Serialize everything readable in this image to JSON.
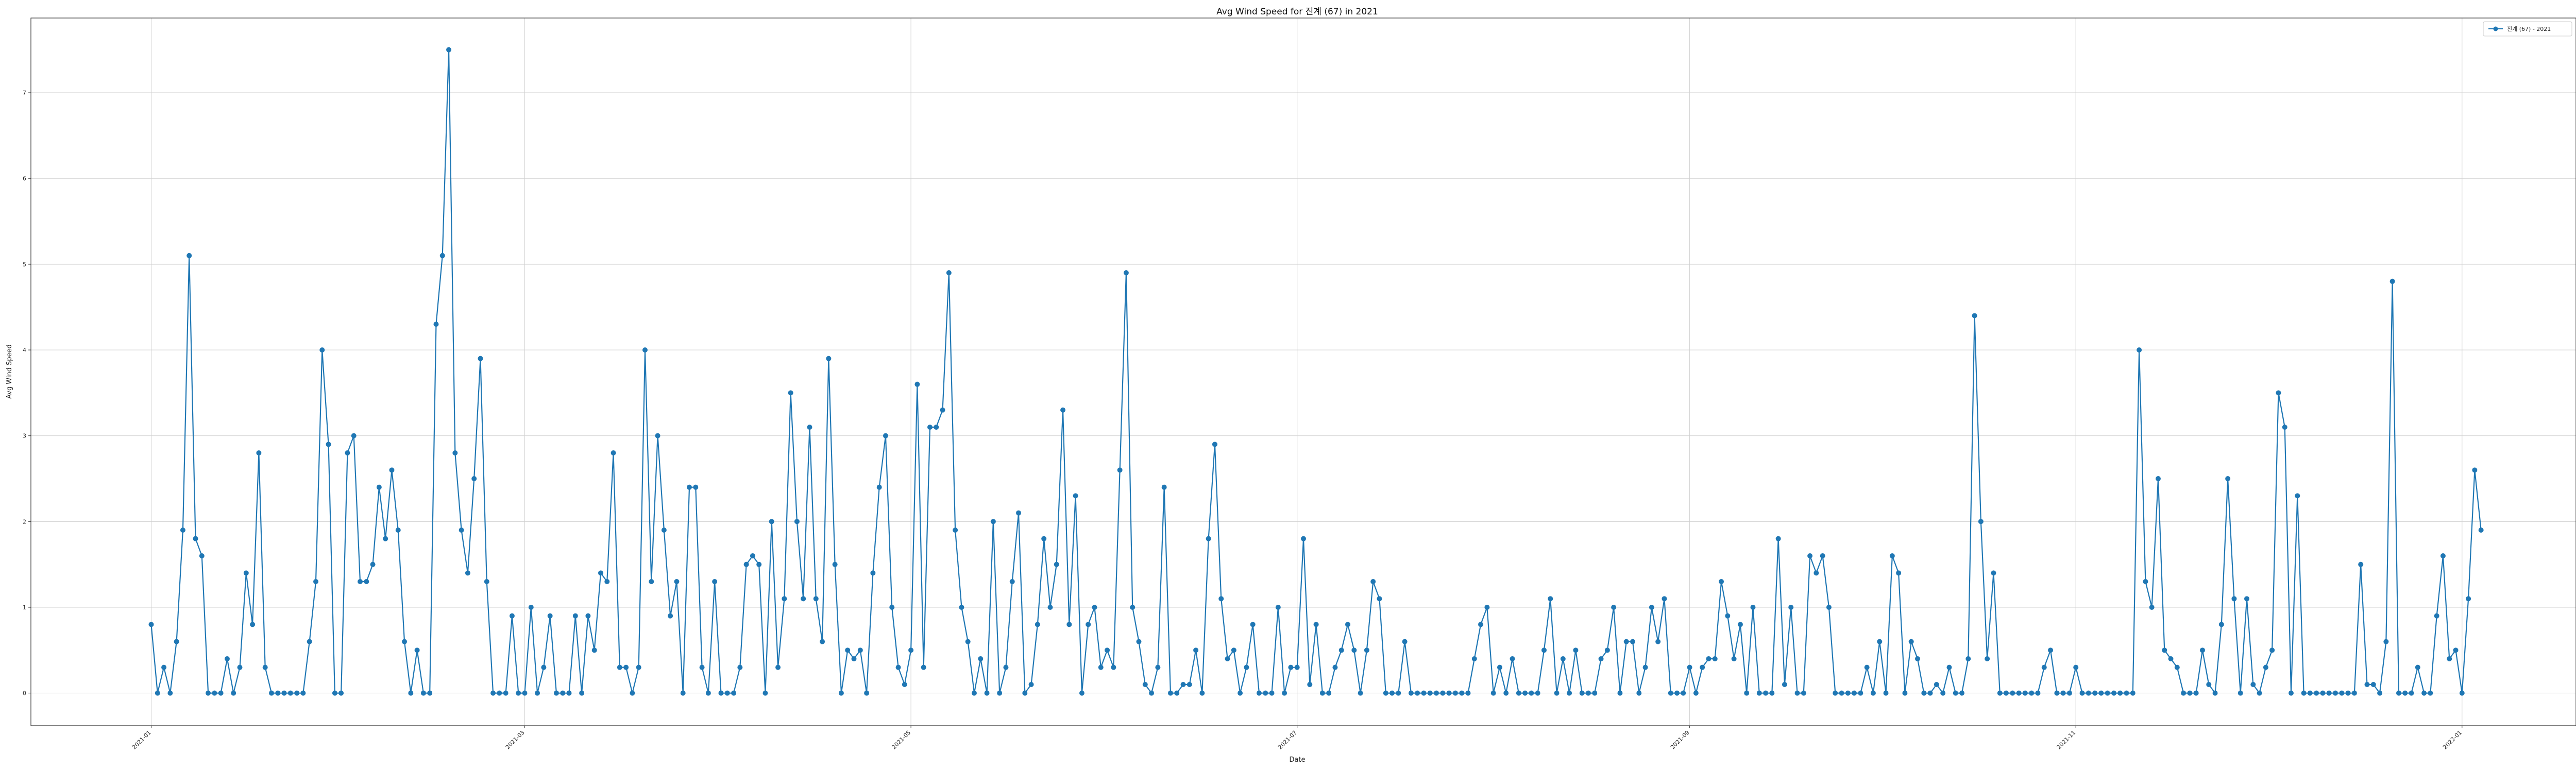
{
  "chart_data": {
    "type": "line",
    "title": "Avg Wind Speed for 진계 (67) in 2021",
    "xlabel": "Date",
    "ylabel": "Avg Wind Speed",
    "x_range": [
      "2020-12-13",
      "2022-01-19"
    ],
    "ylim": [
      -0.38,
      7.87
    ],
    "x_ticks": [
      {
        "date": "2021-01-01",
        "label": "2021-01"
      },
      {
        "date": "2021-03-01",
        "label": "2021-03"
      },
      {
        "date": "2021-05-01",
        "label": "2021-05"
      },
      {
        "date": "2021-07-01",
        "label": "2021-07"
      },
      {
        "date": "2021-09-01",
        "label": "2021-09"
      },
      {
        "date": "2021-11-01",
        "label": "2021-11"
      },
      {
        "date": "2022-01-01",
        "label": "2022-01"
      }
    ],
    "y_ticks": [
      0,
      1,
      2,
      3,
      4,
      5,
      6,
      7
    ],
    "grid": true,
    "legend_position": "top-right",
    "color": "#1f77b4",
    "series": [
      {
        "name": "진계 (67) - 2021",
        "x_start": "2021-01-01",
        "x_end": "2021-12-31",
        "values": [
          0.8,
          0,
          0.3,
          0,
          0.6,
          1.9,
          5.1,
          1.8,
          1.6,
          0,
          0,
          0,
          0.4,
          0,
          0.3,
          1.4,
          0.8,
          2.8,
          0.3,
          0,
          0,
          0,
          0,
          0,
          0,
          0.6,
          1.3,
          4,
          2.9,
          0,
          0,
          2.8,
          3,
          1.3,
          1.3,
          1.5,
          2.4,
          1.8,
          2.6,
          1.9,
          0.6,
          0,
          0.5,
          0,
          0,
          4.3,
          5.1,
          7.5,
          2.8,
          1.9,
          1.4,
          2.5,
          3.9,
          1.3,
          0,
          0,
          0,
          0.9,
          0,
          0,
          1,
          0,
          0.3,
          0.9,
          0,
          0,
          0,
          0.9,
          0,
          0.9,
          0.5,
          1.4,
          1.3,
          2.8,
          0.3,
          0.3,
          0,
          0.3,
          4,
          1.3,
          3,
          1.9,
          0.9,
          1.3,
          0,
          2.4,
          2.4,
          0.3,
          0,
          1.3,
          0,
          0,
          0,
          0.3,
          1.5,
          1.6,
          1.5,
          0,
          2,
          0.3,
          1.1,
          3.5,
          2,
          1.1,
          3.1,
          1.1,
          0.6,
          3.9,
          1.5,
          0,
          0.5,
          0.4,
          0.5,
          0,
          1.4,
          2.4,
          3,
          1,
          0.3,
          0.1,
          0.5,
          3.6,
          0.3,
          3.1,
          3.1,
          3.3,
          4.9,
          1.9,
          1,
          0.6,
          0,
          0.4,
          0,
          2,
          0,
          0.3,
          1.3,
          2.1,
          0,
          0.1,
          0.8,
          1.8,
          1,
          1.5,
          3.3,
          0.8,
          2.3,
          0,
          0.8,
          1,
          0.3,
          0.5,
          0.3,
          2.6,
          4.9,
          1,
          0.6,
          0.1,
          0,
          0.3,
          2.4,
          0,
          0,
          0.1,
          0.1,
          0.5,
          0,
          1.8,
          2.9,
          1.1,
          0.4,
          0.5,
          0,
          0.3,
          0.8,
          0,
          0,
          0,
          1,
          0,
          0.3,
          0.3,
          1.8,
          0.1,
          0.8,
          0,
          0,
          0.3,
          0.5,
          0.8,
          0.5,
          0,
          0.5,
          1.3,
          1.1,
          0,
          0,
          0,
          0.6,
          0,
          0,
          0,
          0,
          0,
          0,
          0,
          0,
          0,
          0,
          0.4,
          0.8,
          1,
          0,
          0.3,
          0,
          0.4,
          0,
          0,
          0,
          0,
          0.5,
          1.1,
          0,
          0.4,
          0,
          0.5,
          0,
          0,
          0,
          0.4,
          0.5,
          1,
          0,
          0.6,
          0.6,
          0,
          0.3,
          1,
          0.6,
          1.1,
          0,
          0,
          0,
          0.3,
          0,
          0.3,
          0.4,
          0.4,
          1.3,
          0.9,
          0.4,
          0.8,
          0,
          1,
          0,
          0,
          0,
          1.8,
          0.1,
          1,
          0,
          0,
          1.6,
          1.4,
          1.6,
          1,
          0,
          0,
          0,
          0,
          0,
          0.3,
          0,
          0.6,
          0,
          1.6,
          1.4,
          0,
          0.6,
          0.4,
          0,
          0,
          0.1,
          0,
          0.3,
          0,
          0,
          0.4,
          4.4,
          2,
          0.4,
          1.4,
          0,
          0,
          0,
          0,
          0,
          0,
          0,
          0.3,
          0.5,
          0,
          0,
          0,
          0.3,
          0,
          0,
          0,
          0,
          0,
          0,
          0,
          0,
          0,
          4,
          1.3,
          1,
          2.5,
          0.5,
          0.4,
          0.3,
          0,
          0,
          0,
          0.5,
          0.1,
          0,
          0.8,
          2.5,
          1.1,
          0,
          1.1,
          0.1,
          0,
          0.3,
          0.5,
          3.5,
          3.1,
          0,
          2.3,
          0,
          0,
          0,
          0,
          0,
          0,
          0,
          0,
          0,
          1.5,
          0.1,
          0.1,
          0,
          0.6,
          4.8,
          0,
          0,
          0,
          0.3,
          0,
          0,
          0.9,
          1.6,
          0.4,
          0.5,
          0,
          1.1,
          2.6,
          1.9
        ]
      }
    ]
  }
}
